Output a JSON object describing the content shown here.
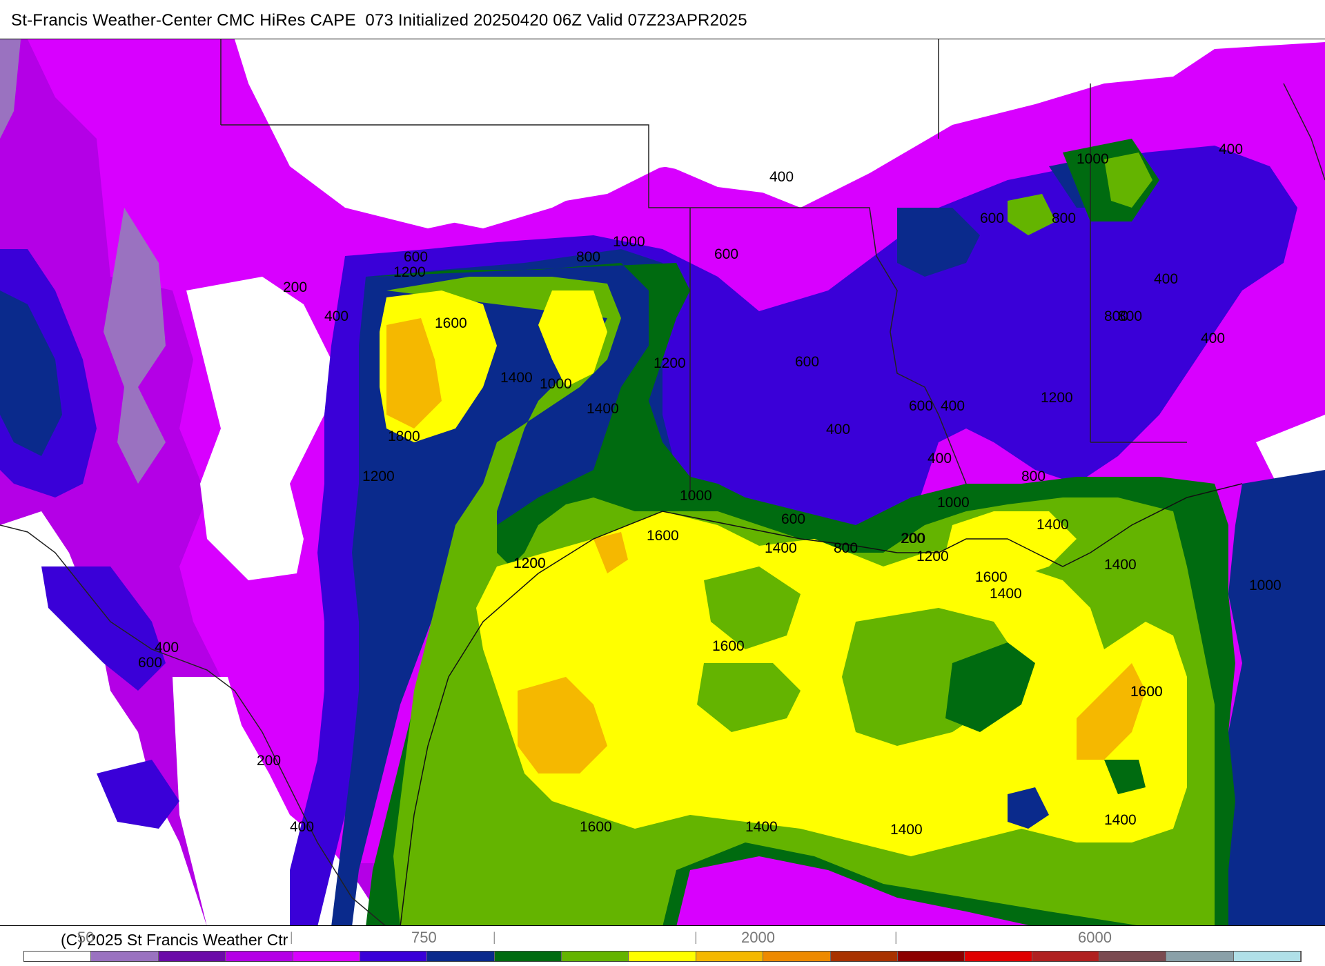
{
  "header": {
    "title": "St-Francis Weather-Center CMC HiRes CAPE  073 Initialized 20250420 06Z Valid 07Z23APR2025"
  },
  "footer": {
    "copyright": "(C) 2025 St Francis Weather Ctr",
    "scale_labels": [
      "50",
      "750",
      "2000",
      "6000"
    ],
    "separators": [
      "|",
      "|",
      "|",
      "|"
    ]
  },
  "colors": {
    "c0": "#ffffff",
    "c50": "#9a72c0",
    "c200": "#6b0aa8",
    "c400": "#b400e6",
    "c600": "#d800ff",
    "c800": "#3a00d8",
    "c1000": "#0a2a8c",
    "c1200": "#006b10",
    "c1400": "#64b400",
    "c1600": "#ffff00",
    "c1800": "#f5b800",
    "c2000": "#ee8a00",
    "c2500": "#a83200",
    "c3000": "#8c0000",
    "c4000": "#e00000",
    "c5000": "#b02020",
    "c6000": "#7a4a50",
    "c7000": "#8aa0a8",
    "c8000": "#b0e0e8"
  },
  "colorbar": [
    "#ffffff",
    "#9a72c0",
    "#6b0aa8",
    "#b400e6",
    "#d800ff",
    "#3a00d8",
    "#0a2a8c",
    "#006b10",
    "#64b400",
    "#ffff00",
    "#f5b800",
    "#ee8a00",
    "#a83200",
    "#8c0000",
    "#e00000",
    "#b02020",
    "#7a4a50",
    "#8aa0a8",
    "#b0e0e8"
  ],
  "contour_labels": [
    "200",
    "400",
    "600",
    "1200",
    "800",
    "1000",
    "600",
    "400",
    "1000",
    "600",
    "800",
    "400",
    "1600",
    "1400",
    "1000",
    "1200",
    "1400",
    "600",
    "800",
    "400",
    "1800",
    "400",
    "600",
    "400",
    "1200",
    "800",
    "400",
    "400",
    "800",
    "200",
    "1200",
    "1000",
    "1600",
    "1000",
    "600",
    "1400",
    "800",
    "200",
    "1400",
    "1400",
    "1200",
    "1600",
    "1400",
    "1000",
    "1200",
    "1600",
    "400",
    "600",
    "1600",
    "1600",
    "200",
    "400",
    "1600",
    "1400",
    "1400",
    "1400",
    "1200"
  ]
}
